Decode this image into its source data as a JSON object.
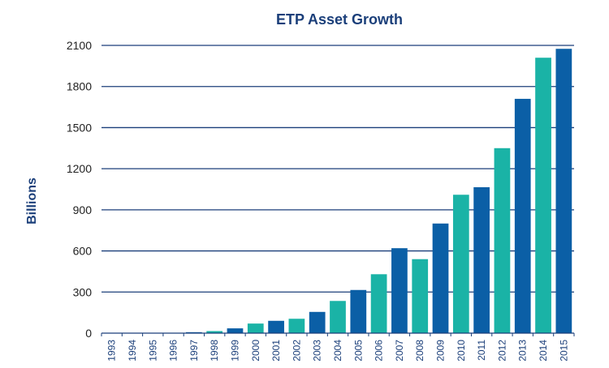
{
  "chart_data": {
    "type": "bar",
    "title": "ETP Asset Growth",
    "xlabel": "",
    "ylabel": "Billions",
    "ylim": [
      0,
      2100
    ],
    "yticks": [
      0,
      300,
      600,
      900,
      1200,
      1500,
      1800,
      2100
    ],
    "grid": true,
    "legend": "none",
    "categories": [
      "1993",
      "1994",
      "1995",
      "1996",
      "1997",
      "1998",
      "1999",
      "2000",
      "2001",
      "2002",
      "2003",
      "2004",
      "2005",
      "2006",
      "2007",
      "2008",
      "2009",
      "2010",
      "2011",
      "2012",
      "2013",
      "2014",
      "2015"
    ],
    "values": [
      0,
      1,
      2,
      3,
      7,
      15,
      35,
      70,
      90,
      105,
      155,
      235,
      315,
      430,
      620,
      540,
      800,
      1010,
      1065,
      1350,
      1710,
      2010,
      2075
    ],
    "colors": [
      "#0b5fa6",
      "#1ab3a6",
      "#0b5fa6",
      "#1ab3a6",
      "#0b5fa6",
      "#1ab3a6",
      "#0b5fa6",
      "#1ab3a6",
      "#0b5fa6",
      "#1ab3a6",
      "#0b5fa6",
      "#1ab3a6",
      "#0b5fa6",
      "#1ab3a6",
      "#0b5fa6",
      "#1ab3a6",
      "#0b5fa6",
      "#1ab3a6",
      "#0b5fa6",
      "#1ab3a6",
      "#0b5fa6",
      "#1ab3a6",
      "#0b5fa6"
    ]
  },
  "colors": {
    "text_dark_blue": "#1b3f7a",
    "bar_blue": "#0b5fa6",
    "bar_teal": "#1ab3a6"
  }
}
